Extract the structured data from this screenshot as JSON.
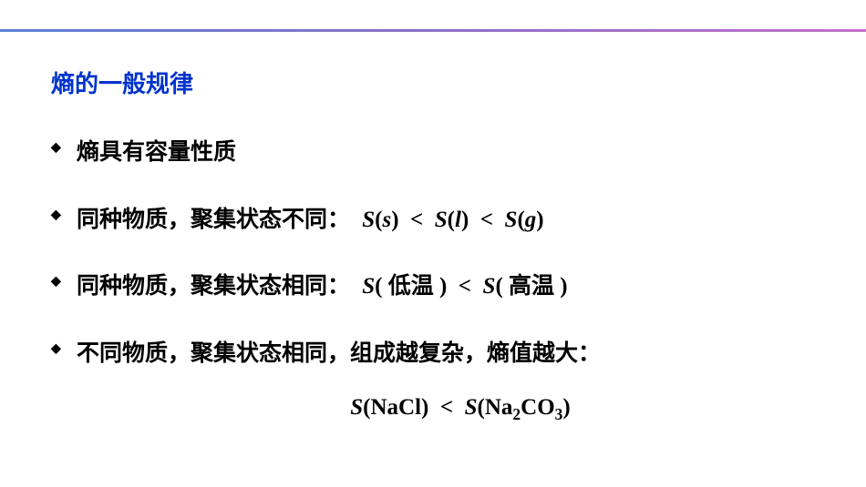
{
  "title": "熵的一般规律",
  "bullets": {
    "b1": "熵具有容量性质",
    "b2_prefix": "同种物质，聚集状态不同：",
    "b3_prefix": "同种物质，聚集状态相同：",
    "b4_prefix": "不同物质，聚集状态相同，组成越复杂，熵值越大：",
    "low_temp": "低温",
    "high_temp": "高温"
  },
  "formulas": {
    "S": "S",
    "s": "s",
    "l": "l",
    "g": "g",
    "lt": "<",
    "nacl": "NaCl",
    "na": "Na",
    "co": "CO",
    "two": "2",
    "three": "3",
    "lparen": "(",
    "rparen": ")",
    "space_lparen_cjk": "( ",
    "space_rparen_cjk": " )"
  },
  "styling": {
    "title_color": "#0033cc",
    "text_color": "#000000",
    "background_color": "#ffffff",
    "gradient_start": "#5b7fd6",
    "gradient_mid": "#8b6fc9",
    "gradient_end": "#c46fc9",
    "title_fontsize": 26,
    "body_fontsize": 25,
    "bullet_marker": "◆"
  }
}
